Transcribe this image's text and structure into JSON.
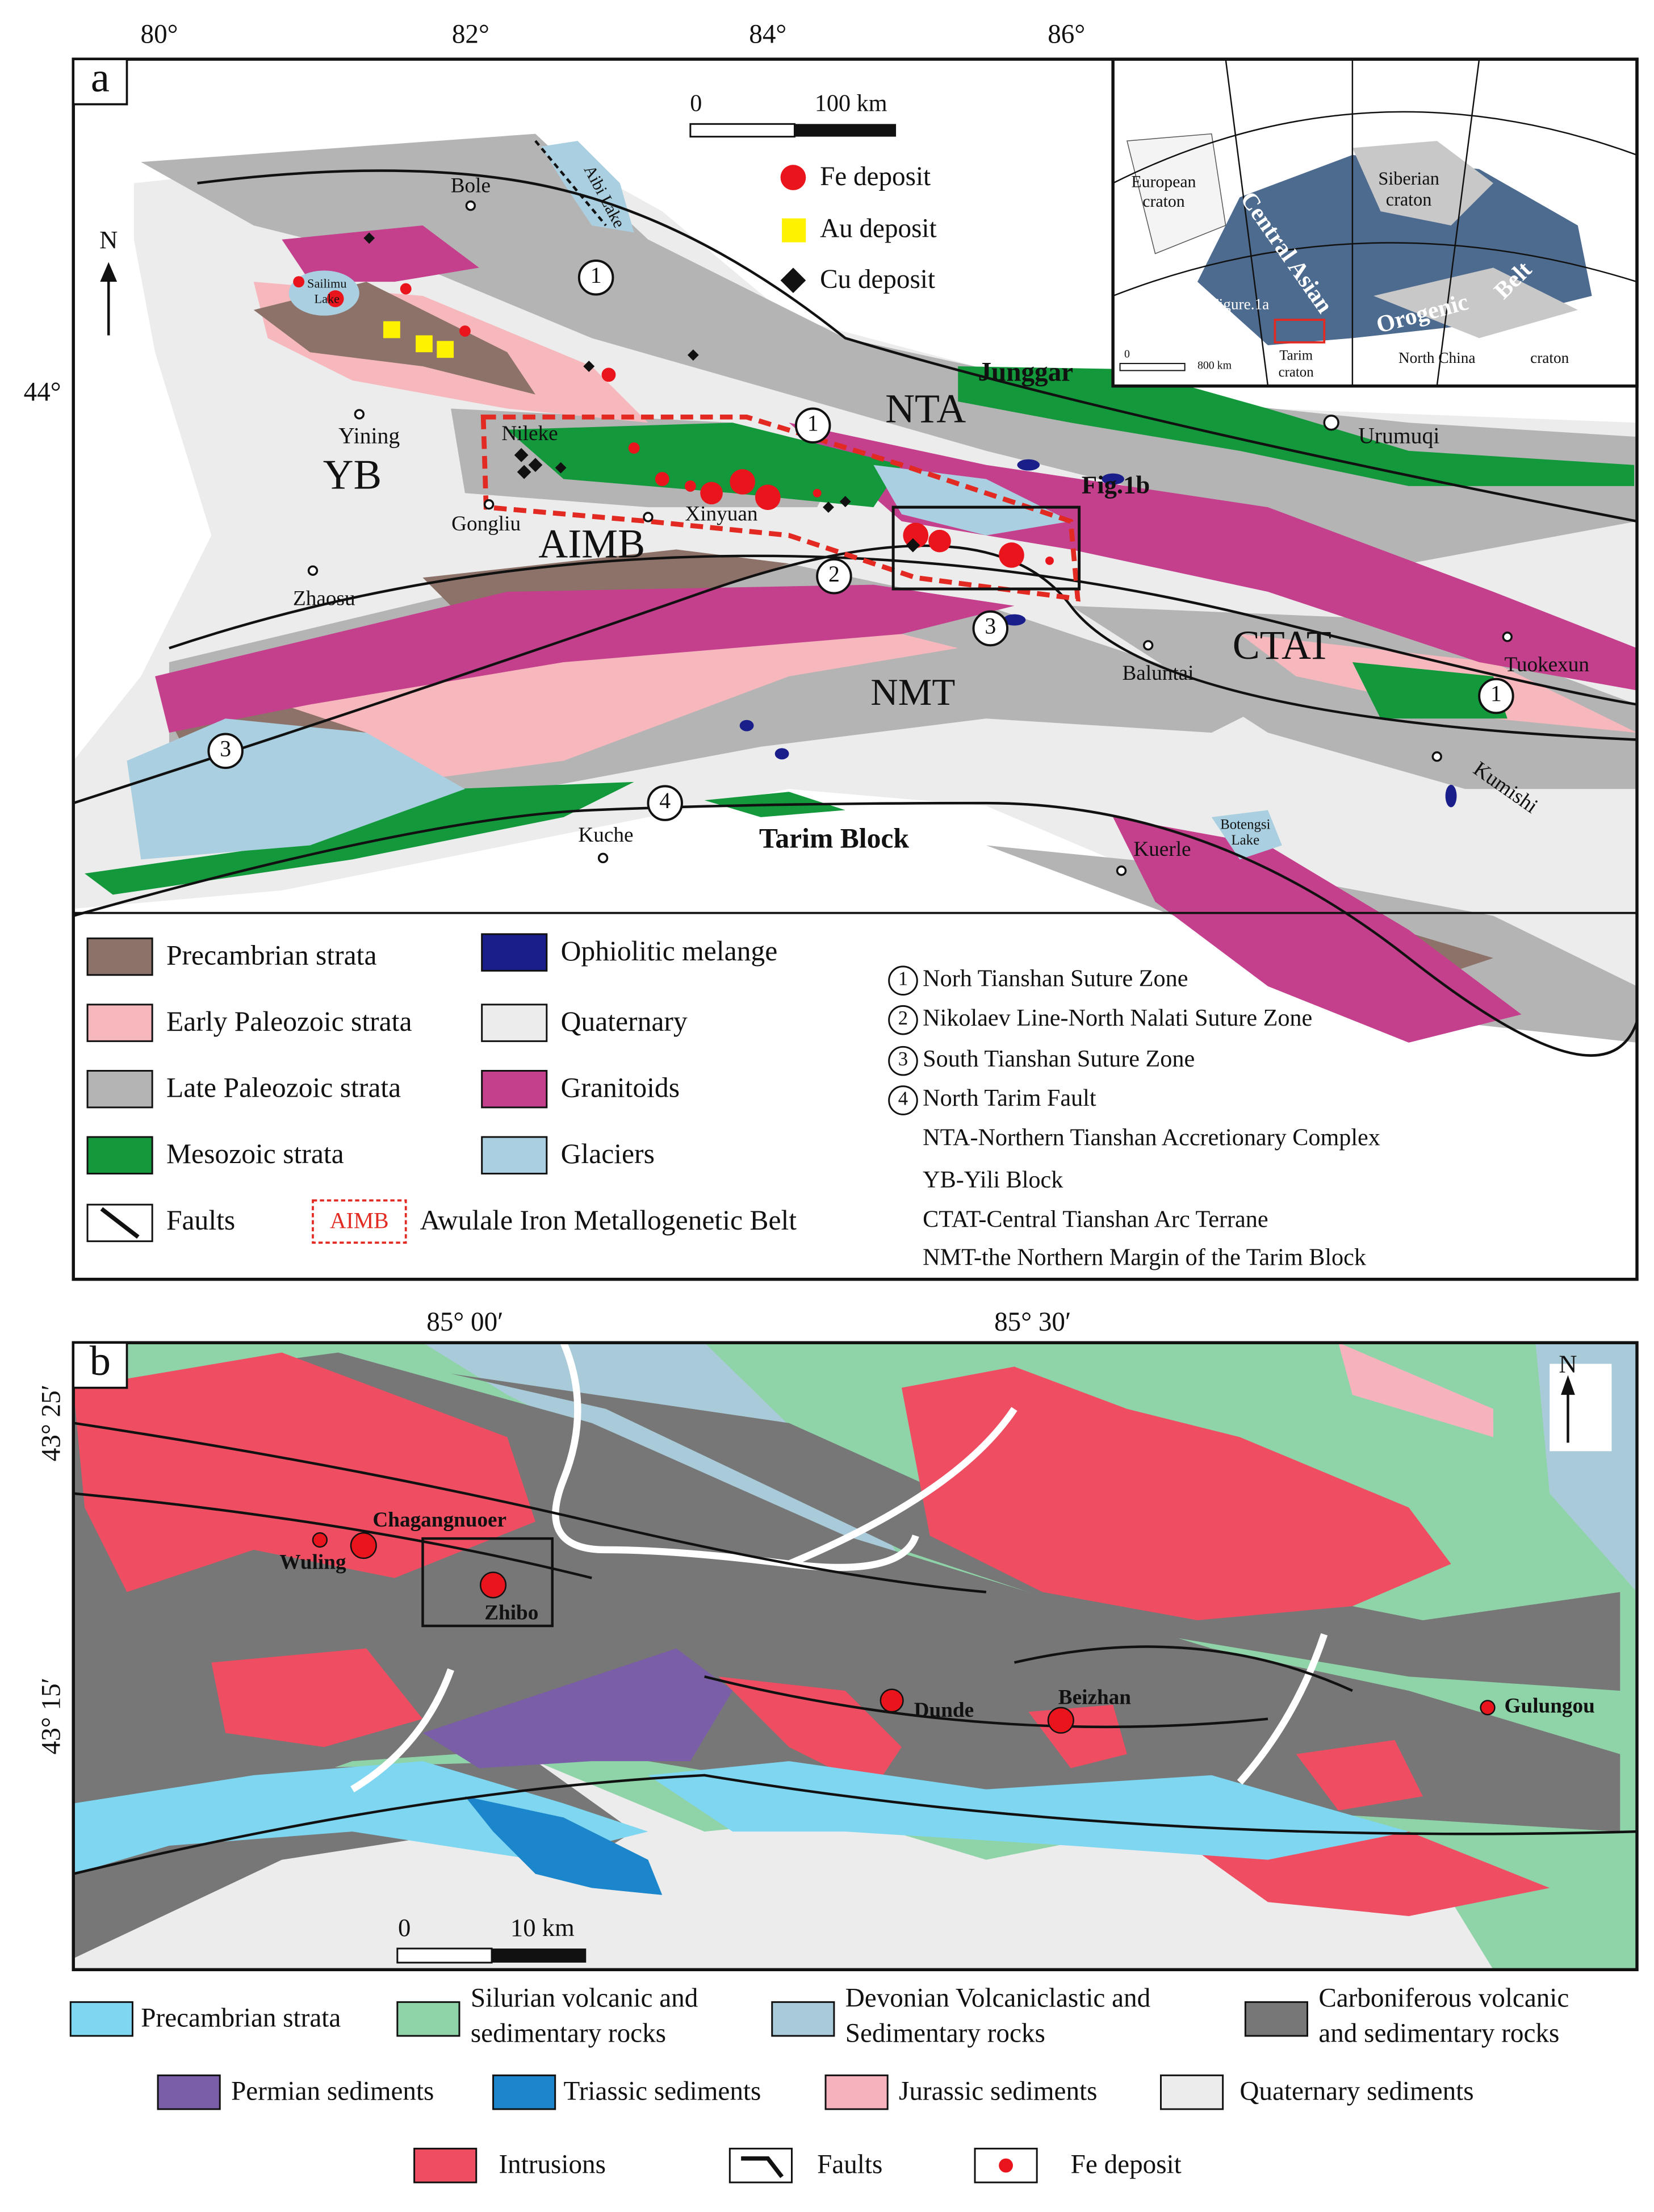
{
  "panel_a": {
    "label": "a",
    "lon_ticks": [
      "80°",
      "82°",
      "84°",
      "86°"
    ],
    "lat_ticks": [
      "44°"
    ],
    "north": "N",
    "scale_bar": {
      "start": "0",
      "end": "100 km"
    },
    "deposit_legend": [
      "Fe deposit",
      "Au deposit",
      "Cu deposit"
    ],
    "places": [
      "Bole",
      "Aibi Lake",
      "Sailimu",
      "Lake",
      "Yining",
      "Nileke",
      "Gongliu",
      "Xinyuan",
      "Zhaosu",
      "Urumuqi",
      "Baluntai",
      "Tuokexun",
      "Kumishi",
      "Kuche",
      "Botengsi",
      "Lake",
      "Kuerle"
    ],
    "units": [
      "YB",
      "AIMB",
      "NTA",
      "CTAT",
      "NMT",
      "Junggar",
      "Tarim Block",
      "Fig.1b"
    ],
    "suture_numbers": [
      "1",
      "2",
      "3",
      "4"
    ],
    "inset": {
      "labels": [
        "European",
        "craton",
        "Siberian",
        "craton",
        "Central Asian",
        "Orogenic",
        "Belt",
        "Figure.1a",
        "Tarim",
        "craton",
        "North China",
        "craton"
      ],
      "scale_start": "0",
      "scale_end": "800 km"
    },
    "legend": [
      "Precambrian strata",
      "Early Paleozoic strata",
      "Late Paleozoic strata",
      "Mesozoic strata",
      "Faults",
      "Ophiolitic melange",
      "Quaternary",
      "Granitoids",
      "Glaciers"
    ],
    "legend_aimb_box": "AIMB",
    "legend_aimb": "Awulale Iron Metallogenetic Belt",
    "notes": [
      "Norh Tianshan Suture Zone",
      "Nikolaev Line-North Nalati Suture Zone",
      "South Tianshan Suture Zone",
      "North Tarim Fault"
    ],
    "abbreviations": [
      "NTA-Northern Tianshan Accretionary Complex",
      "YB-Yili Block",
      "CTAT-Central Tianshan Arc Terrane",
      "NMT-the Northern Margin of the Tarim Block"
    ]
  },
  "panel_b": {
    "label": "b",
    "lon_ticks": [
      "85° 00′",
      "85° 30′"
    ],
    "lat_ticks": [
      "43° 25′",
      "43° 15′"
    ],
    "north": "N",
    "scale_bar": {
      "start": "0",
      "end": "10 km"
    },
    "places": [
      "Chagangnuoer",
      "Wuling",
      "Zhibo",
      "Dunde",
      "Beizhan",
      "Gulungou"
    ],
    "legend": [
      "Precambrian strata",
      "Silurian volcanic and",
      "sedimentary rocks",
      "Devonian Volcaniclastic and",
      "Sedimentary rocks",
      "Carboniferous volcanic",
      "and sedimentary rocks",
      "Permian sediments",
      "Triassic sediments",
      "Jurassic sediments",
      "Quaternary sediments",
      "Intrusions",
      "Faults",
      "Fe deposit"
    ]
  }
}
